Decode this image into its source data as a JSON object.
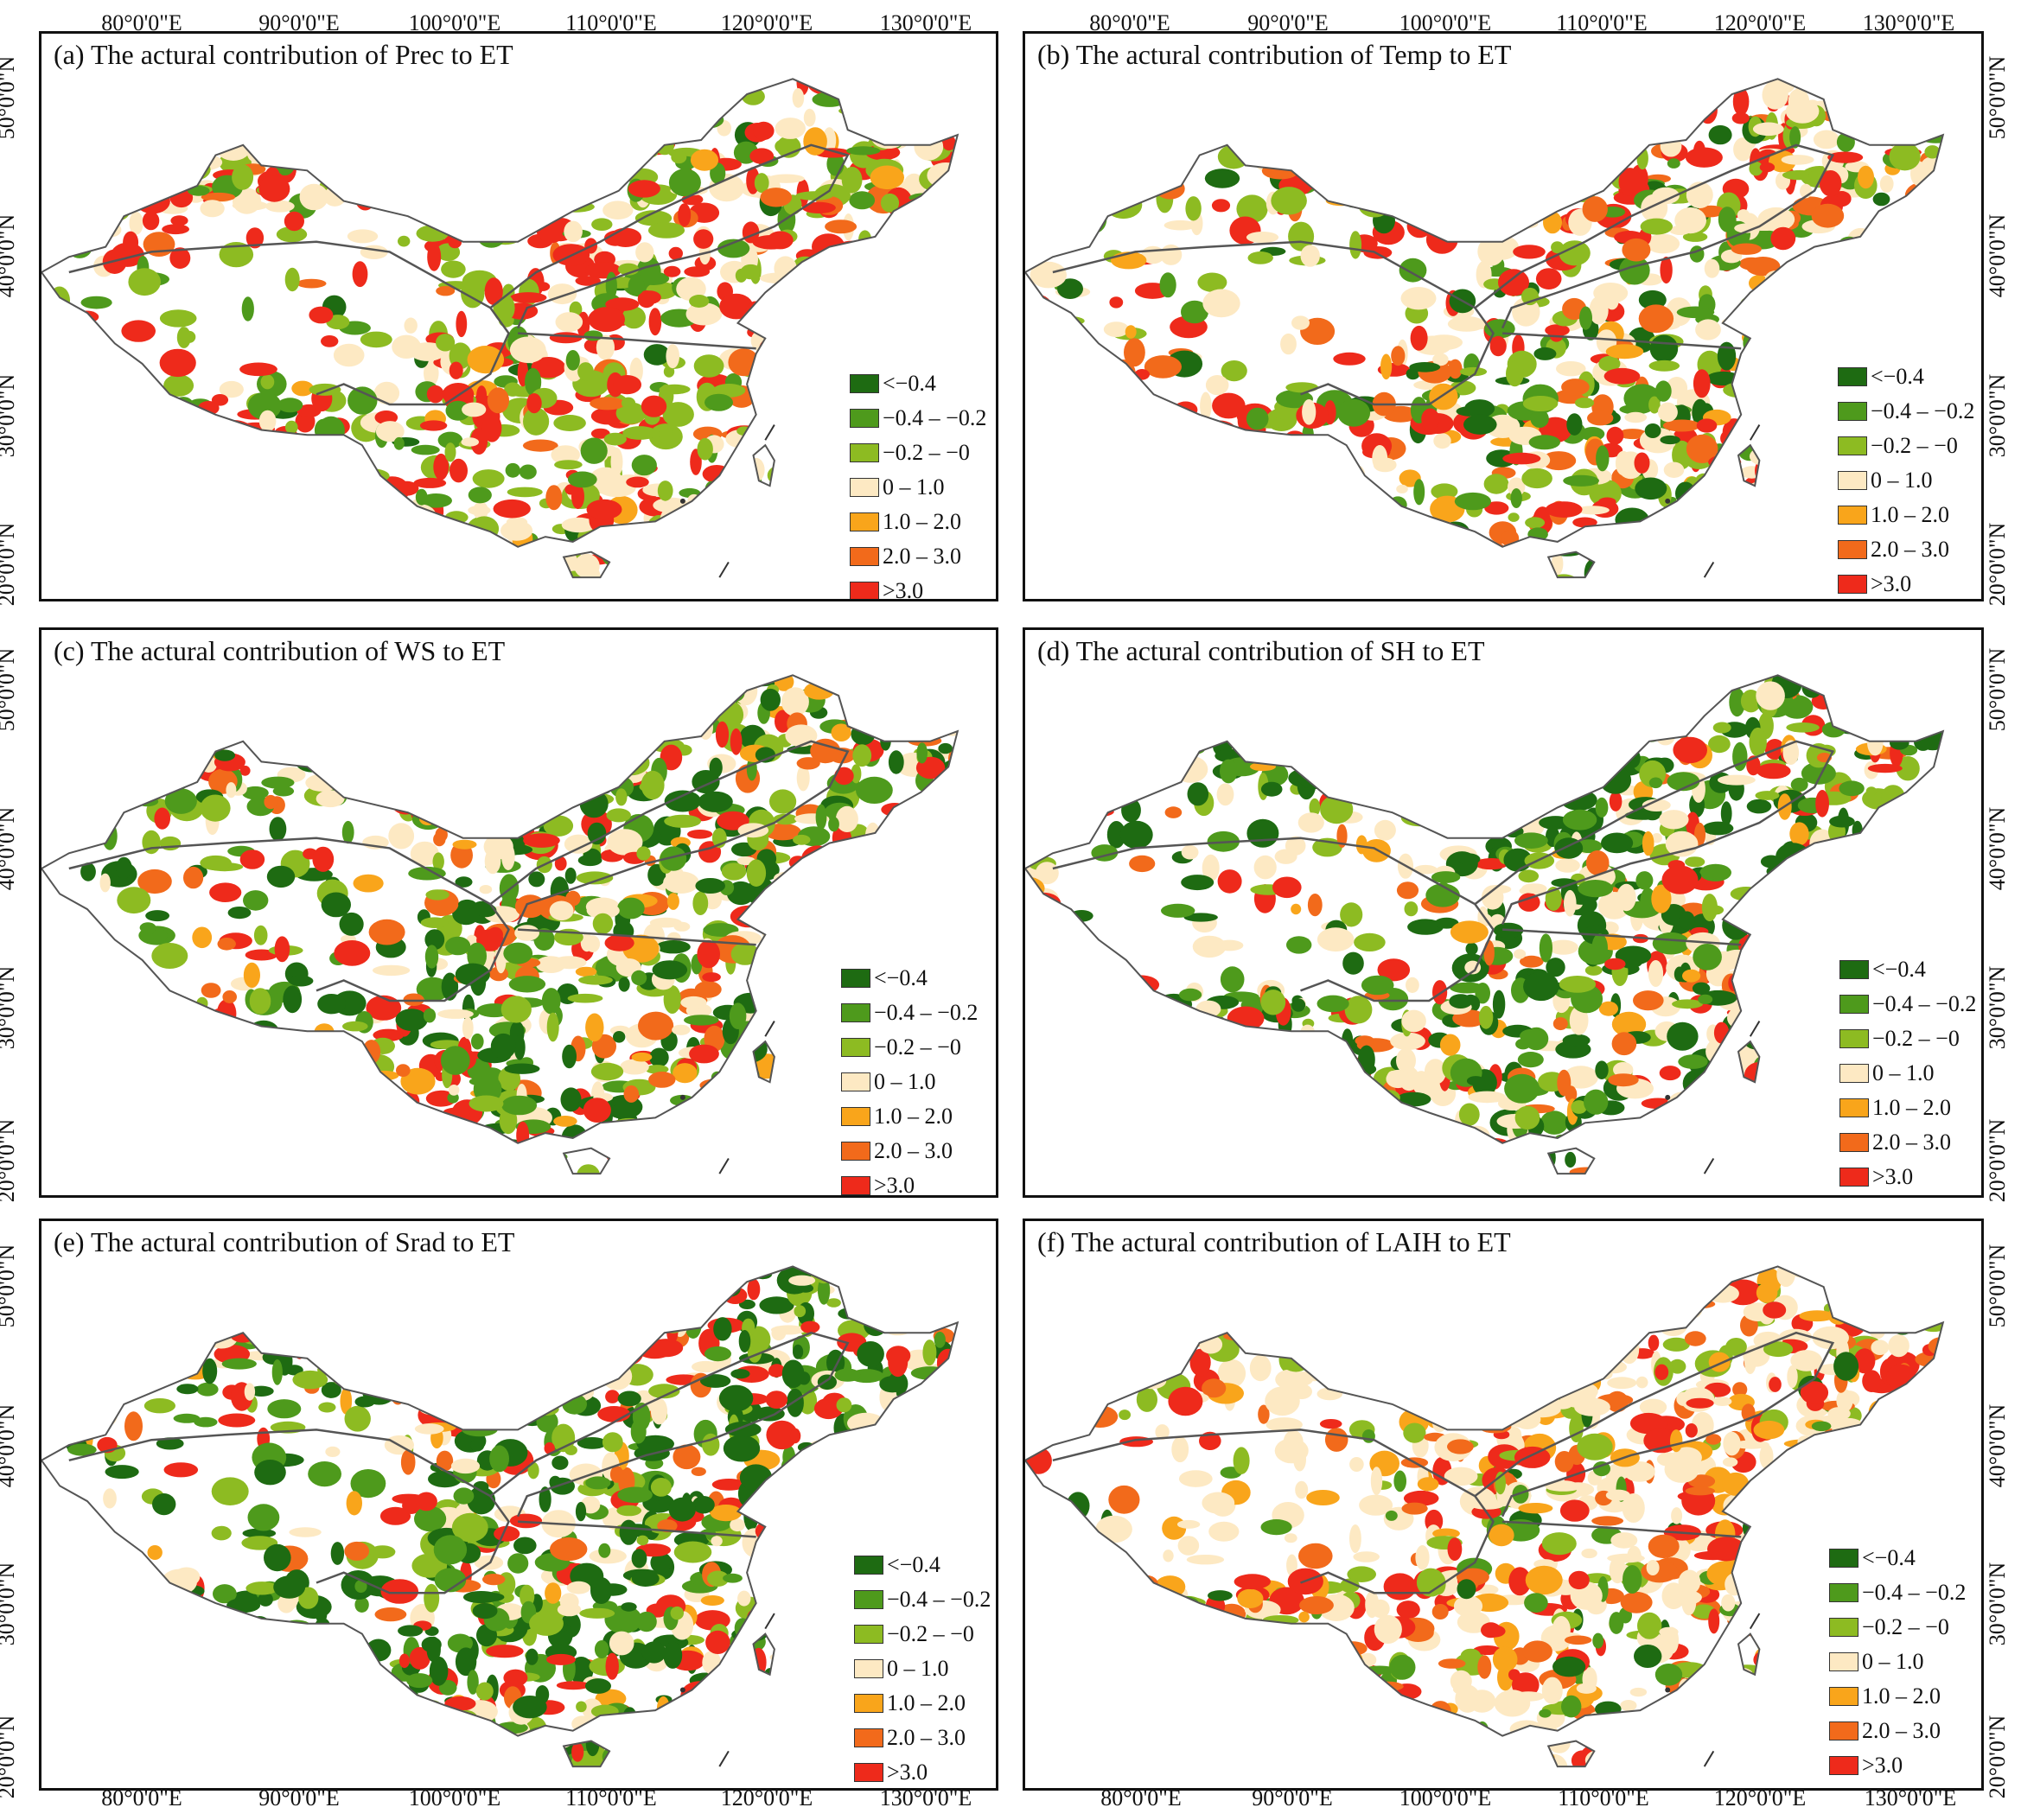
{
  "axes": {
    "longitude_labels": [
      "80°0'0\"E",
      "90°0'0\"E",
      "100°0'0\"E",
      "110°0'0\"E",
      "120°0'0\"E",
      "130°0'0\"E"
    ],
    "latitude_labels": [
      "50°0'0\"N",
      "40°0'0\"N",
      "30°0'0\"N",
      "20°0'0\"N"
    ]
  },
  "legend": [
    {
      "label": "<−0.4",
      "color": "#1e6b12"
    },
    {
      "label": "−0.4 – −0.2",
      "color": "#4e9a1c"
    },
    {
      "label": "−0.2 – −0",
      "color": "#8dbb22"
    },
    {
      "label": "0 – 1.0",
      "color": "#fde9c3"
    },
    {
      "label": "1.0 – 2.0",
      "color": "#f9a51b"
    },
    {
      "label": "2.0 – 3.0",
      "color": "#f26a1b"
    },
    {
      "label": ">3.0",
      "color": "#ee2a1b"
    }
  ],
  "panels": [
    {
      "title": "(a) The actural contribution of Prec to ET",
      "weights": [
        0.02,
        0.14,
        0.28,
        0.22,
        0.02,
        0.04,
        0.28
      ]
    },
    {
      "title": "(b) The actural contribution of Temp to ET",
      "weights": [
        0.1,
        0.12,
        0.18,
        0.22,
        0.05,
        0.1,
        0.23
      ]
    },
    {
      "title": "(c) The actural contribution of WS to ET",
      "weights": [
        0.22,
        0.16,
        0.16,
        0.18,
        0.04,
        0.08,
        0.16
      ]
    },
    {
      "title": "(d) The actural contribution of SH to ET",
      "weights": [
        0.26,
        0.16,
        0.16,
        0.2,
        0.04,
        0.08,
        0.1
      ]
    },
    {
      "title": "(e) The actural contribution of Srad to ET",
      "weights": [
        0.3,
        0.16,
        0.16,
        0.14,
        0.03,
        0.06,
        0.15
      ]
    },
    {
      "title": "(f) The actural contribution of LAIH to ET",
      "weights": [
        0.05,
        0.06,
        0.1,
        0.38,
        0.14,
        0.13,
        0.14
      ]
    }
  ]
}
